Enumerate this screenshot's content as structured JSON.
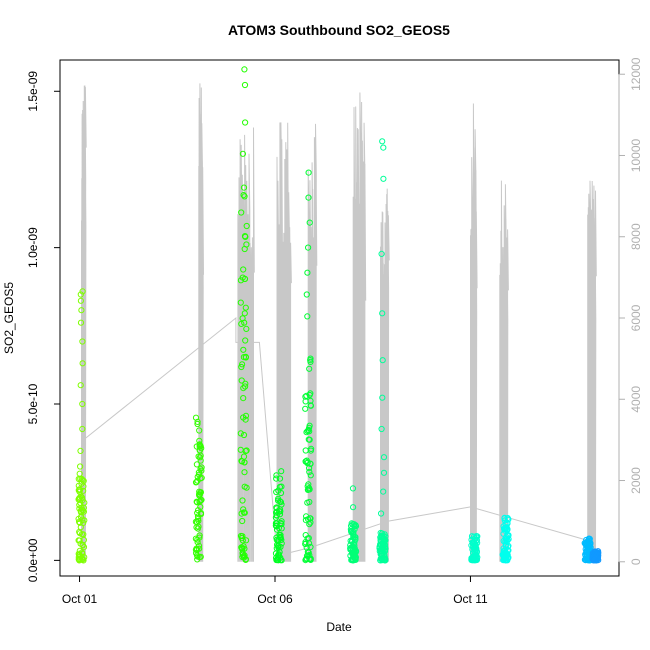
{
  "chart_data": {
    "type": "scatter",
    "title": "ATOM3 Southbound SO2_GEOS5",
    "xlabel": "Date",
    "ylabel": "SO2_GEOS5",
    "x_ticks": [
      "Oct 01",
      "Oct 06",
      "Oct 11"
    ],
    "x_tick_days": [
      1,
      6,
      11
    ],
    "xlim": [
      0.5,
      14.8
    ],
    "y_ticks": [
      "0.0e+00",
      "5.0e-10",
      "1.0e-09",
      "1.5e-09"
    ],
    "y_tick_values": [
      0,
      5e-10,
      1e-09,
      1.5e-09
    ],
    "ylim": [
      -5e-11,
      1.6e-09
    ],
    "y2_ticks": [
      "0",
      "2000",
      "4000",
      "6000",
      "8000",
      "10000",
      "12000"
    ],
    "y2_tick_values": [
      0,
      2000,
      4000,
      6000,
      8000,
      10000,
      12000
    ],
    "y2lim": [
      -350,
      12350
    ],
    "y2_color": "#b0b0b0",
    "grid": false,
    "clusters": [
      {
        "day": 1.05,
        "color": "#7fff00",
        "core_max": 2.8e-10,
        "outliers": [
          3e-10,
          3.5e-10,
          4.2e-10,
          5e-10,
          5.6e-10,
          6.3e-10,
          7e-10,
          7.6e-10,
          8e-10,
          8.3e-10,
          8.5e-10,
          8.6e-10
        ]
      },
      {
        "day": 4.05,
        "color": "#33ff00",
        "core_max": 4.6e-10,
        "outliers": []
      },
      {
        "day": 5.2,
        "color": "#22ff00",
        "core_max": 1.2e-09,
        "outliers": [
          1.3e-09,
          1.4e-09,
          1.52e-09,
          1.57e-09,
          6.5e-10,
          7.6e-10,
          9e-10
        ]
      },
      {
        "day": 6.1,
        "color": "#00ff22",
        "core_max": 3e-10,
        "outliers": []
      },
      {
        "day": 6.85,
        "color": "#00ff33",
        "core_max": 6.8e-10,
        "outliers": [
          7.8e-10,
          8.5e-10,
          9.2e-10,
          1e-09,
          1.08e-09,
          1.16e-09,
          1.24e-09
        ]
      },
      {
        "day": 8.0,
        "color": "#00ff77",
        "core_max": 1.2e-10,
        "outliers": [
          1.7e-10,
          2.3e-10
        ]
      },
      {
        "day": 8.75,
        "color": "#00ff99",
        "core_max": 9e-11,
        "outliers": [
          1.5e-10,
          2.2e-10,
          2.8e-10,
          3.3e-10,
          4.2e-10,
          5.2e-10,
          6.4e-10,
          7.9e-10,
          9.8e-10,
          1.22e-09,
          1.32e-09,
          1.34e-09
        ]
      },
      {
        "day": 11.1,
        "color": "#00ffcc",
        "core_max": 8e-11,
        "outliers": []
      },
      {
        "day": 11.9,
        "color": "#00ffee",
        "core_max": 1.4e-10,
        "outliers": []
      },
      {
        "day": 14.0,
        "color": "#00bbff",
        "core_max": 7e-11,
        "outliers": []
      },
      {
        "day": 14.2,
        "color": "#1199ff",
        "core_max": 3e-11,
        "outliers": []
      }
    ],
    "altitude_segments": [
      {
        "start": 1.05,
        "end": 1.15,
        "ceiling": 12000
      },
      {
        "start": 4.05,
        "end": 4.15,
        "ceiling": 12000
      },
      {
        "start": 5.05,
        "end": 5.45,
        "ceiling": 10700
      },
      {
        "start": 6.05,
        "end": 6.4,
        "ceiling": 11200
      },
      {
        "start": 6.85,
        "end": 7.05,
        "ceiling": 10800
      },
      {
        "start": 8.0,
        "end": 8.3,
        "ceiling": 11600
      },
      {
        "start": 8.7,
        "end": 8.9,
        "ceiling": 9300
      },
      {
        "start": 11.0,
        "end": 11.15,
        "ceiling": 11300
      },
      {
        "start": 11.75,
        "end": 11.95,
        "ceiling": 9400
      },
      {
        "start": 14.0,
        "end": 14.2,
        "ceiling": 9500
      }
    ],
    "transit_path": [
      [
        1.1,
        3000
      ],
      [
        5.0,
        6000
      ],
      [
        5.0,
        5400
      ],
      [
        5.6,
        5400
      ],
      [
        6.05,
        150
      ],
      [
        6.9,
        350
      ],
      [
        8.9,
        1000
      ],
      [
        11.0,
        1350
      ],
      [
        14.1,
        500
      ]
    ]
  }
}
